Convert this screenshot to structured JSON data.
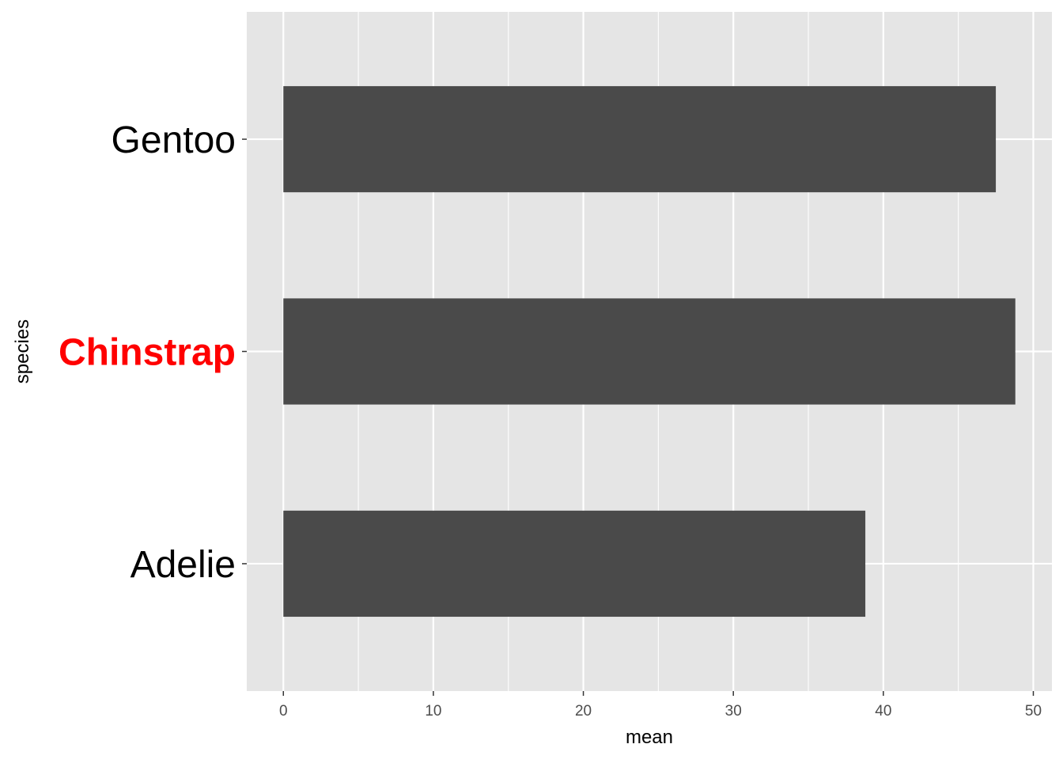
{
  "chart_data": {
    "type": "bar",
    "orientation": "horizontal",
    "categories": [
      "Adelie",
      "Chinstrap",
      "Gentoo"
    ],
    "values": [
      38.8,
      48.8,
      47.5
    ],
    "xlabel": "mean",
    "ylabel": "species",
    "xlim": [
      -2.44,
      51.24
    ],
    "x_ticks": [
      0,
      10,
      20,
      30,
      40,
      50
    ],
    "x_tick_labels": [
      "0",
      "10",
      "20",
      "30",
      "40",
      "50"
    ],
    "grid": true,
    "legend": "none",
    "highlighted_category": "Chinstrap",
    "colors": {
      "panel_background": "#e5e5e5",
      "grid": "#ffffff",
      "bar_fill": "#4a4a4a",
      "category_label": "#000000",
      "highlight_label": "#ff0000",
      "tick_label": "#4d4d4d",
      "axis_title": "#000000"
    }
  }
}
